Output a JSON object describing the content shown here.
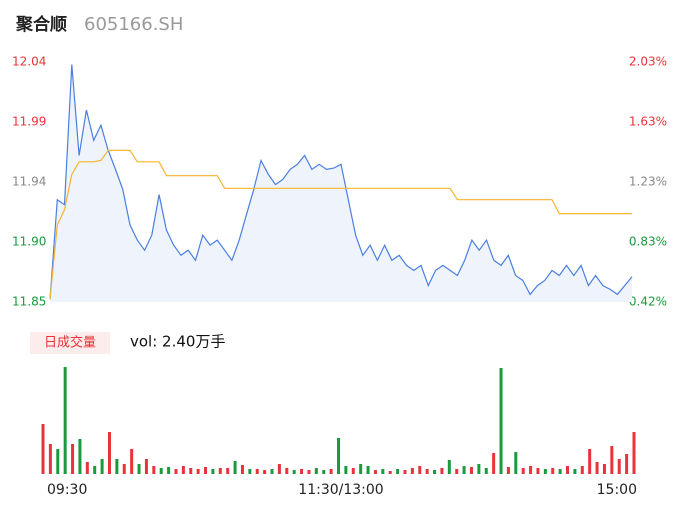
{
  "chart_data": [
    {
      "type": "line",
      "title": "聚合顺",
      "subtitle": "605166.SH",
      "x": [
        0,
        3,
        6,
        9,
        12,
        15,
        18,
        21,
        24,
        27,
        30,
        33,
        36,
        39,
        42,
        45,
        48,
        51,
        54,
        57,
        60,
        63,
        66,
        69,
        72,
        75,
        78,
        81,
        84,
        87,
        90,
        93,
        96,
        99,
        102,
        105,
        108,
        111,
        114,
        117,
        120,
        123,
        126,
        129,
        132,
        135,
        138,
        141,
        144,
        147,
        150,
        153,
        156,
        159,
        162,
        165,
        168,
        171,
        174,
        177,
        180,
        183,
        186,
        189,
        192,
        195,
        198,
        201,
        204,
        207,
        210,
        213,
        216,
        219,
        222,
        225,
        228,
        231,
        234,
        237,
        240
      ],
      "xlim": [
        0,
        240
      ],
      "series": [
        {
          "color": "#4a7fe0",
          "fill": "#eef3fc",
          "values": [
            11.852,
            11.931,
            11.927,
            12.038,
            11.966,
            12.002,
            11.978,
            11.99,
            11.97,
            11.955,
            11.939,
            11.911,
            11.899,
            11.891,
            11.903,
            11.935,
            11.907,
            11.895,
            11.887,
            11.891,
            11.883,
            11.903,
            11.895,
            11.899,
            11.891,
            11.883,
            11.899,
            11.919,
            11.939,
            11.962,
            11.951,
            11.943,
            11.947,
            11.955,
            11.959,
            11.966,
            11.955,
            11.959,
            11.955,
            11.956,
            11.959,
            11.931,
            11.903,
            11.887,
            11.895,
            11.883,
            11.895,
            11.883,
            11.887,
            11.879,
            11.875,
            11.879,
            11.863,
            11.875,
            11.879,
            11.875,
            11.871,
            11.883,
            11.899,
            11.891,
            11.899,
            11.883,
            11.879,
            11.887,
            11.871,
            11.867,
            11.856,
            11.863,
            11.867,
            11.875,
            11.871,
            11.879,
            11.871,
            11.879,
            11.863,
            11.871,
            11.863,
            11.86,
            11.856,
            11.863,
            11.87
          ]
        },
        {
          "color": "#f5b52e",
          "values": [
            11.852,
            11.911,
            11.923,
            11.951,
            11.961,
            11.961,
            11.961,
            11.962,
            11.97,
            11.97,
            11.97,
            11.97,
            11.961,
            11.961,
            11.961,
            11.961,
            11.95,
            11.95,
            11.95,
            11.95,
            11.95,
            11.95,
            11.95,
            11.95,
            11.94,
            11.94,
            11.94,
            11.94,
            11.94,
            11.94,
            11.94,
            11.94,
            11.94,
            11.94,
            11.94,
            11.94,
            11.94,
            11.94,
            11.94,
            11.94,
            11.94,
            11.94,
            11.94,
            11.94,
            11.94,
            11.94,
            11.94,
            11.94,
            11.94,
            11.94,
            11.94,
            11.94,
            11.94,
            11.94,
            11.94,
            11.94,
            11.931,
            11.931,
            11.931,
            11.931,
            11.931,
            11.931,
            11.931,
            11.931,
            11.931,
            11.931,
            11.931,
            11.931,
            11.931,
            11.931,
            11.92,
            11.92,
            11.92,
            11.92,
            11.92,
            11.92,
            11.92,
            11.92,
            11.92,
            11.92,
            11.92
          ]
        }
      ],
      "ylim": [
        11.85,
        12.04
      ],
      "yticks": [
        11.85,
        {
          "value": 11.8975,
          "label": "11.90"
        },
        {
          "value": 11.945,
          "label": "11.94"
        },
        {
          "value": 11.9925,
          "label": "11.99"
        },
        12.04
      ],
      "ytick_colors": [
        "#1a9a3c",
        "#1a9a3c",
        "#888888",
        "#e8333a",
        "#e8333a"
      ],
      "y2lim": [
        0.424,
        2.034
      ],
      "y2ticks": [
        {
          "value": 0.424,
          "label": "0.42%"
        },
        {
          "value": 0.8265,
          "label": "0.83%"
        },
        {
          "value": 1.229,
          "label": "1.23%"
        },
        {
          "value": 1.6315,
          "label": "1.63%"
        },
        {
          "value": 2.034,
          "label": "2.03%"
        }
      ],
      "y2tick_colors": [
        "#1a9a3c",
        "#1a9a3c",
        "#888888",
        "#e8333a",
        "#e8333a"
      ]
    },
    {
      "type": "bar",
      "title": "日成交量",
      "annotation": "vol: 2.40万手",
      "x": [
        0,
        3,
        6,
        9,
        12,
        15,
        18,
        21,
        24,
        27,
        30,
        33,
        36,
        39,
        42,
        45,
        48,
        51,
        54,
        57,
        60,
        63,
        66,
        69,
        72,
        75,
        78,
        81,
        84,
        87,
        90,
        93,
        96,
        99,
        102,
        105,
        108,
        111,
        114,
        117,
        120,
        123,
        126,
        129,
        132,
        135,
        138,
        141,
        144,
        147,
        150,
        153,
        156,
        159,
        162,
        165,
        168,
        171,
        174,
        177,
        180,
        183,
        186,
        189,
        192,
        195,
        198,
        201,
        204,
        207,
        210,
        213,
        216,
        219,
        222,
        225,
        228,
        231,
        234,
        237,
        240
      ],
      "values": [
        500,
        300,
        250,
        1070,
        300,
        350,
        120,
        80,
        150,
        420,
        150,
        100,
        250,
        100,
        150,
        80,
        60,
        70,
        50,
        80,
        60,
        50,
        70,
        50,
        60,
        60,
        130,
        90,
        50,
        50,
        40,
        50,
        100,
        60,
        40,
        50,
        40,
        60,
        40,
        50,
        360,
        80,
        60,
        100,
        80,
        40,
        50,
        30,
        50,
        40,
        60,
        80,
        50,
        40,
        60,
        140,
        50,
        80,
        70,
        100,
        60,
        210,
        1060,
        70,
        220,
        60,
        80,
        60,
        50,
        60,
        50,
        80,
        50,
        80,
        250,
        120,
        100,
        280,
        150,
        200,
        420
      ],
      "colors": [
        "#e8333a",
        "#e8333a",
        "#1a9a3c",
        "#1a9a3c",
        "#e8333a",
        "#1a9a3c",
        "#e8333a",
        "#1a9a3c",
        "#1a9a3c",
        "#e8333a",
        "#1a9a3c",
        "#e8333a",
        "#e8333a",
        "#1a9a3c",
        "#e8333a",
        "#e8333a",
        "#1a9a3c",
        "#1a9a3c",
        "#e8333a",
        "#e8333a",
        "#e8333a",
        "#e8333a",
        "#e8333a",
        "#1a9a3c",
        "#e8333a",
        "#e8333a",
        "#1a9a3c",
        "#e8333a",
        "#1a9a3c",
        "#e8333a",
        "#e8333a",
        "#1a9a3c",
        "#e8333a",
        "#e8333a",
        "#1a9a3c",
        "#e8333a",
        "#e8333a",
        "#1a9a3c",
        "#1a9a3c",
        "#e8333a",
        "#1a9a3c",
        "#1a9a3c",
        "#e8333a",
        "#1a9a3c",
        "#1a9a3c",
        "#e8333a",
        "#1a9a3c",
        "#e8333a",
        "#1a9a3c",
        "#e8333a",
        "#e8333a",
        "#e8333a",
        "#e8333a",
        "#1a9a3c",
        "#e8333a",
        "#1a9a3c",
        "#e8333a",
        "#1a9a3c",
        "#e8333a",
        "#1a9a3c",
        "#1a9a3c",
        "#e8333a",
        "#1a9a3c",
        "#e8333a",
        "#1a9a3c",
        "#e8333a",
        "#e8333a",
        "#e8333a",
        "#1a9a3c",
        "#e8333a",
        "#1a9a3c",
        "#e8333a",
        "#1a9a3c",
        "#e8333a",
        "#e8333a",
        "#e8333a",
        "#e8333a",
        "#e8333a",
        "#e8333a",
        "#e8333a",
        "#e8333a"
      ],
      "ylim": [
        0,
        1100
      ],
      "xlim": [
        0,
        240
      ],
      "xticks": [
        {
          "value": 0,
          "label": "09:30"
        },
        {
          "value": 120,
          "label": "11:30/13:00"
        },
        {
          "value": 240,
          "label": "15:00"
        }
      ]
    }
  ]
}
